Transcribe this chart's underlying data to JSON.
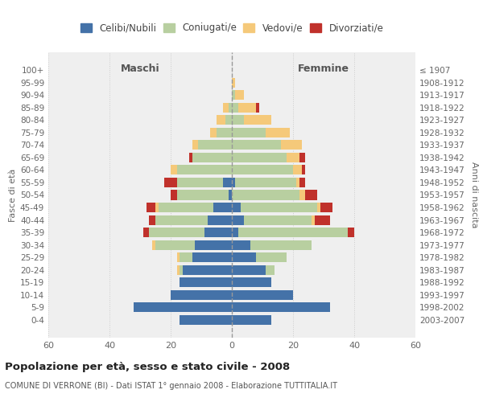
{
  "age_groups": [
    "0-4",
    "5-9",
    "10-14",
    "15-19",
    "20-24",
    "25-29",
    "30-34",
    "35-39",
    "40-44",
    "45-49",
    "50-54",
    "55-59",
    "60-64",
    "65-69",
    "70-74",
    "75-79",
    "80-84",
    "85-89",
    "90-94",
    "95-99",
    "100+"
  ],
  "birth_years": [
    "2003-2007",
    "1998-2002",
    "1993-1997",
    "1988-1992",
    "1983-1987",
    "1978-1982",
    "1973-1977",
    "1968-1972",
    "1963-1967",
    "1958-1962",
    "1953-1957",
    "1948-1952",
    "1943-1947",
    "1938-1942",
    "1933-1937",
    "1928-1932",
    "1923-1927",
    "1918-1922",
    "1913-1917",
    "1908-1912",
    "≤ 1907"
  ],
  "maschi": {
    "celibi": [
      17,
      32,
      20,
      17,
      16,
      13,
      12,
      9,
      8,
      6,
      1,
      3,
      0,
      0,
      0,
      0,
      0,
      0,
      0,
      0,
      0
    ],
    "coniugati": [
      0,
      0,
      0,
      0,
      1,
      4,
      13,
      18,
      17,
      18,
      17,
      15,
      18,
      13,
      11,
      5,
      2,
      1,
      0,
      0,
      0
    ],
    "vedovi": [
      0,
      0,
      0,
      0,
      1,
      1,
      1,
      0,
      0,
      1,
      0,
      0,
      2,
      0,
      2,
      2,
      3,
      2,
      0,
      0,
      0
    ],
    "divorziati": [
      0,
      0,
      0,
      0,
      0,
      0,
      0,
      2,
      2,
      3,
      2,
      4,
      0,
      1,
      0,
      0,
      0,
      0,
      0,
      0,
      0
    ]
  },
  "femmine": {
    "nubili": [
      13,
      32,
      20,
      13,
      11,
      8,
      6,
      2,
      4,
      3,
      0,
      1,
      0,
      0,
      0,
      0,
      0,
      0,
      0,
      0,
      0
    ],
    "coniugate": [
      0,
      0,
      0,
      0,
      3,
      10,
      20,
      36,
      22,
      25,
      22,
      20,
      20,
      18,
      16,
      11,
      4,
      2,
      1,
      0,
      0
    ],
    "vedove": [
      0,
      0,
      0,
      0,
      0,
      0,
      0,
      0,
      1,
      1,
      2,
      1,
      3,
      4,
      7,
      8,
      9,
      6,
      3,
      1,
      0
    ],
    "divorziate": [
      0,
      0,
      0,
      0,
      0,
      0,
      0,
      2,
      5,
      4,
      4,
      2,
      1,
      2,
      0,
      0,
      0,
      1,
      0,
      0,
      0
    ]
  },
  "colors": {
    "celibi_nubili": "#4472a8",
    "coniugati": "#b8cfa0",
    "vedovi": "#f5c97a",
    "divorziati": "#c0312b"
  },
  "xlim": 60,
  "title": "Popolazione per età, sesso e stato civile - 2008",
  "subtitle": "COMUNE DI VERRONE (BI) - Dati ISTAT 1° gennaio 2008 - Elaborazione TUTTITALIA.IT",
  "ylabel_left": "Fasce di età",
  "ylabel_right": "Anni di nascita",
  "xlabel_maschi": "Maschi",
  "xlabel_femmine": "Femmine",
  "legend_labels": [
    "Celibi/Nubili",
    "Coniugati/e",
    "Vedovi/e",
    "Divorziati/e"
  ],
  "bg_color": "#ffffff",
  "plot_bg_color": "#efefef"
}
